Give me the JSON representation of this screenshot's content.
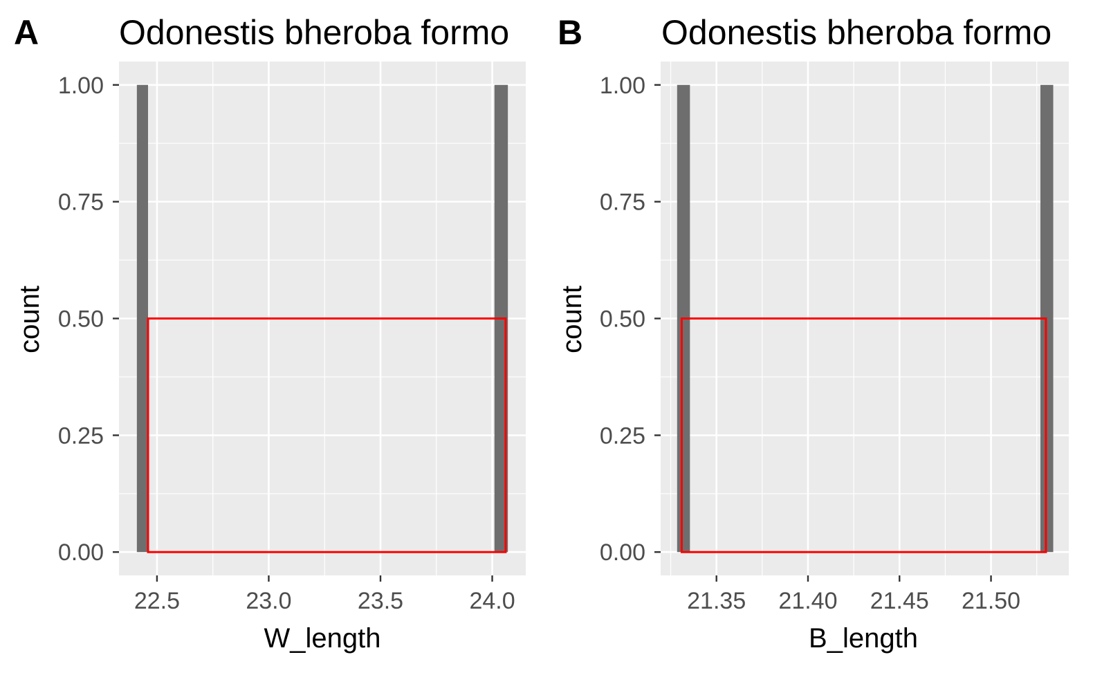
{
  "chart_data": [
    {
      "type": "bar",
      "panel_label": "A",
      "title": "Odonestis bheroba formo",
      "xlabel": "W_length",
      "ylabel": "count",
      "xlim": [
        22.33,
        24.15
      ],
      "ylim": [
        -0.05,
        1.05
      ],
      "x_ticks": [
        22.5,
        23.0,
        23.5,
        24.0
      ],
      "x_tick_labels": [
        "22.5",
        "23.0",
        "23.5",
        "24.0"
      ],
      "y_ticks": [
        0,
        0.25,
        0.5,
        0.75,
        1.0
      ],
      "y_tick_labels": [
        "0.00",
        "0.25",
        "0.50",
        "0.75",
        "1.00"
      ],
      "bars": [
        {
          "x_start": 22.41,
          "x_end": 22.46,
          "count": 1
        },
        {
          "x_start": 24.01,
          "x_end": 24.07,
          "count": 1
        }
      ],
      "highlight_box": {
        "x_start": 22.46,
        "x_end": 24.06,
        "y_start": 0,
        "y_end": 0.5,
        "color": "#ff0000"
      },
      "bar_color": "#6e6e6e",
      "panel_background": "#ebebeb",
      "grid": true
    },
    {
      "type": "bar",
      "panel_label": "B",
      "title": "Odonestis bheroba formo",
      "xlabel": "B_length",
      "ylabel": "count",
      "xlim": [
        21.3195,
        21.5425
      ],
      "ylim": [
        -0.05,
        1.05
      ],
      "x_ticks": [
        21.35,
        21.4,
        21.45,
        21.5
      ],
      "x_tick_labels": [
        "21.35",
        "21.40",
        "21.45",
        "21.50"
      ],
      "y_ticks": [
        0,
        0.25,
        0.5,
        0.75,
        1.0
      ],
      "y_tick_labels": [
        "0.00",
        "0.25",
        "0.50",
        "0.75",
        "1.00"
      ],
      "bars": [
        {
          "x_start": 21.3285,
          "x_end": 21.3355,
          "count": 1
        },
        {
          "x_start": 21.527,
          "x_end": 21.534,
          "count": 1
        }
      ],
      "highlight_box": {
        "x_start": 21.331,
        "x_end": 21.53,
        "y_start": 0,
        "y_end": 0.5,
        "color": "#ff0000"
      },
      "bar_color": "#6e6e6e",
      "panel_background": "#ebebeb",
      "grid": true
    }
  ]
}
